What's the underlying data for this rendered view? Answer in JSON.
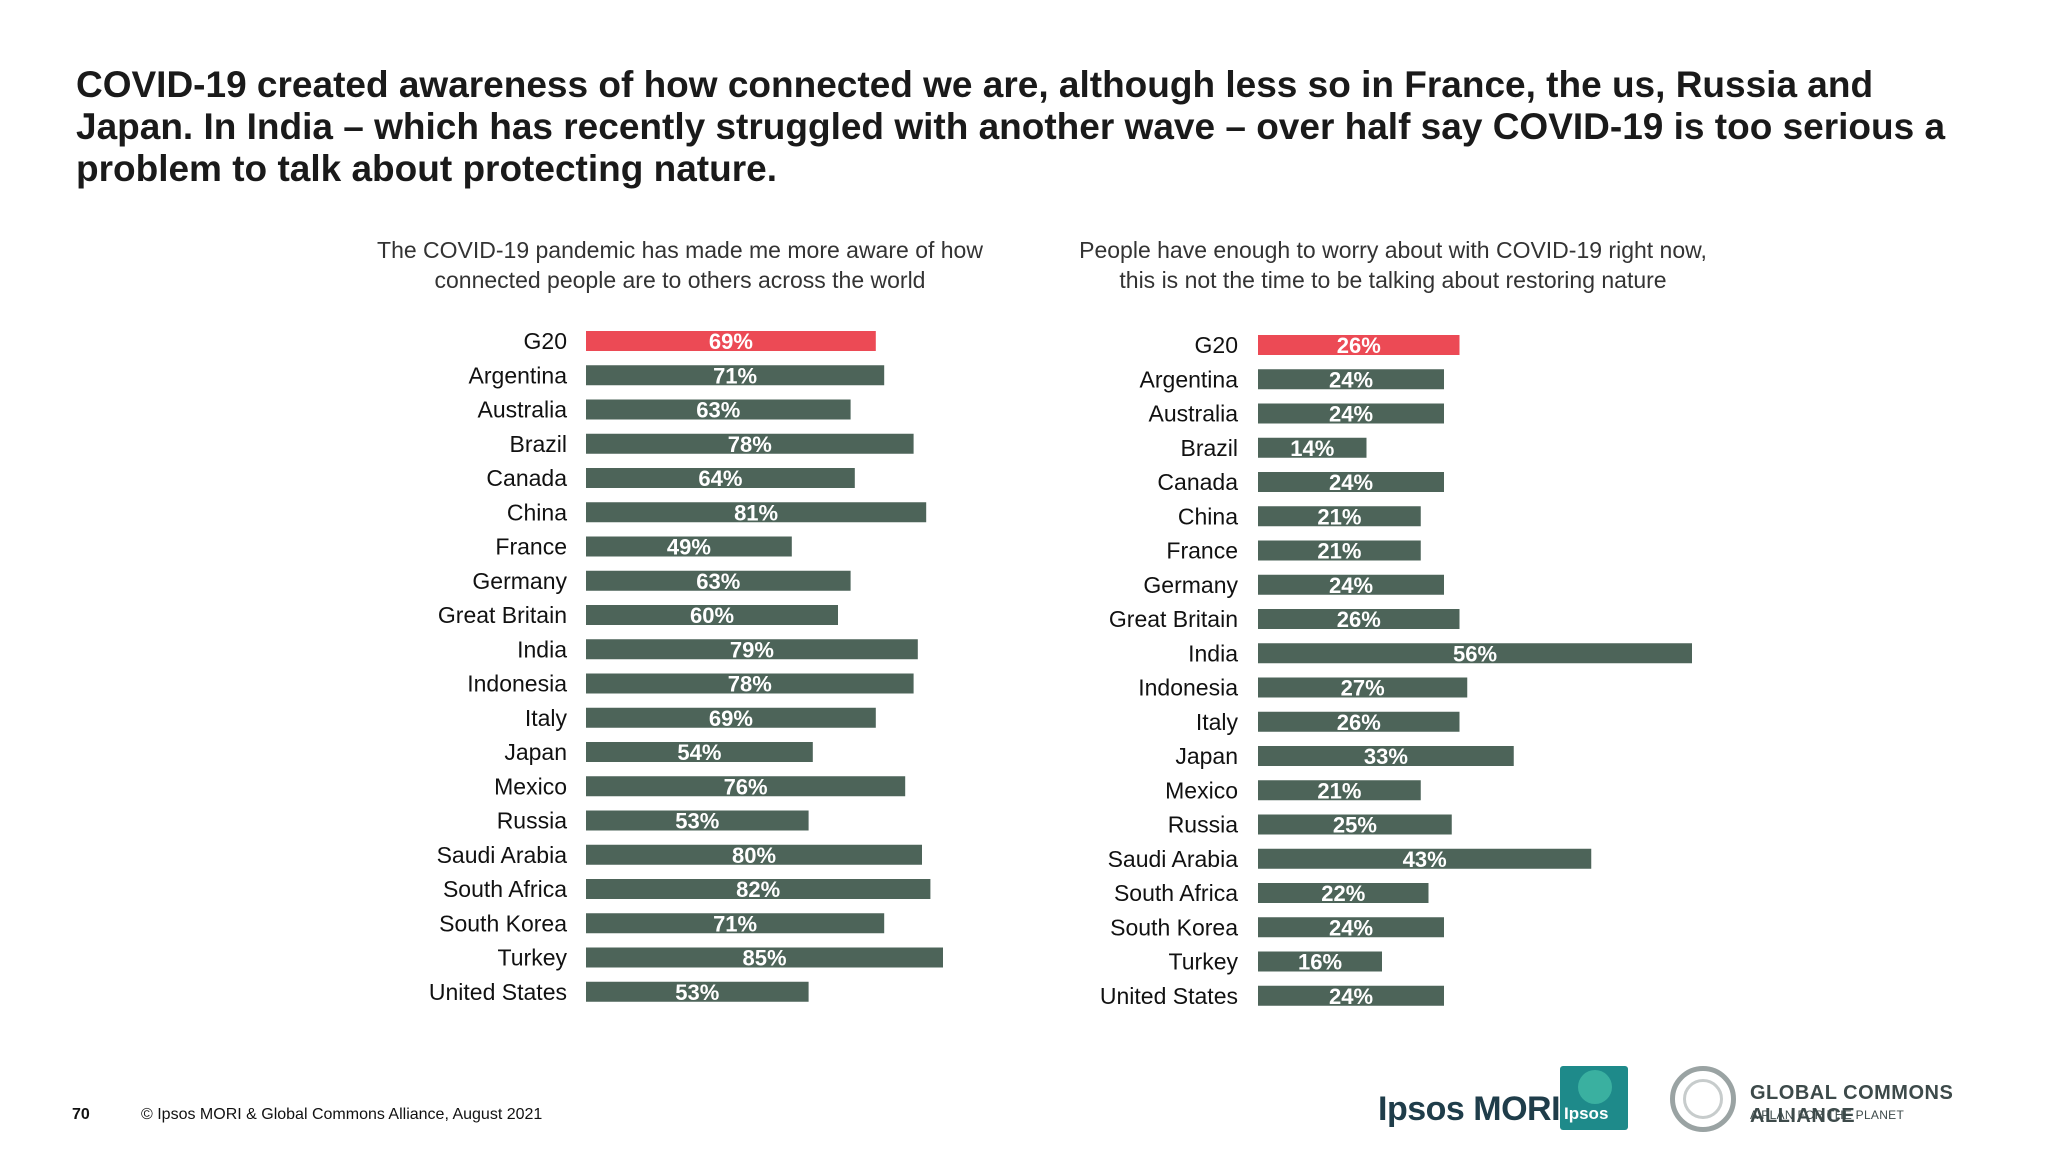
{
  "headline": "COVID-19 created awareness of how connected we are, although less so in France, the us, Russia and Japan. In India – which has recently struggled with another wave – over half say COVID-19 is too serious a problem to talk about protecting nature.",
  "footer": {
    "page_number": "70",
    "copyright": "© Ipsos MORI & Global Commons Alliance, August 2021"
  },
  "logos": {
    "ipsos_mori": "Ipsos MORI",
    "ipsos_badge": "Ipsos",
    "gca_name": "GLOBAL COMMONS ALLIANCE",
    "gca_tagline": "A PLAN FOR THE PLANET"
  },
  "colors": {
    "highlight": "#ec4a55",
    "bar": "#4d6459",
    "label_text": "#ffffff"
  },
  "chart_data": [
    {
      "type": "bar",
      "orientation": "horizontal",
      "title_lines": [
        "The COVID-19 pandemic has made me more aware of how",
        "connected people are to others across the world"
      ],
      "unit": "%",
      "categories": [
        "G20",
        "Argentina",
        "Australia",
        "Brazil",
        "Canada",
        "China",
        "France",
        "Germany",
        "Great Britain",
        "India",
        "Indonesia",
        "Italy",
        "Japan",
        "Mexico",
        "Russia",
        "Saudi Arabia",
        "South Africa",
        "South Korea",
        "Turkey",
        "United States"
      ],
      "values": [
        69,
        71,
        63,
        78,
        64,
        81,
        49,
        63,
        60,
        79,
        78,
        69,
        54,
        76,
        53,
        80,
        82,
        71,
        85,
        53
      ],
      "highlight_index": 0
    },
    {
      "type": "bar",
      "orientation": "horizontal",
      "title_lines": [
        "People have enough to worry about with COVID-19 right now,",
        "this is not the time to be talking about restoring nature"
      ],
      "unit": "%",
      "categories": [
        "G20",
        "Argentina",
        "Australia",
        "Brazil",
        "Canada",
        "China",
        "France",
        "Germany",
        "Great Britain",
        "India",
        "Indonesia",
        "Italy",
        "Japan",
        "Mexico",
        "Russia",
        "Saudi Arabia",
        "South Africa",
        "South Korea",
        "Turkey",
        "United States"
      ],
      "values": [
        26,
        24,
        24,
        14,
        24,
        21,
        21,
        24,
        26,
        56,
        27,
        26,
        33,
        21,
        25,
        43,
        22,
        24,
        16,
        24
      ],
      "highlight_index": 0
    }
  ]
}
